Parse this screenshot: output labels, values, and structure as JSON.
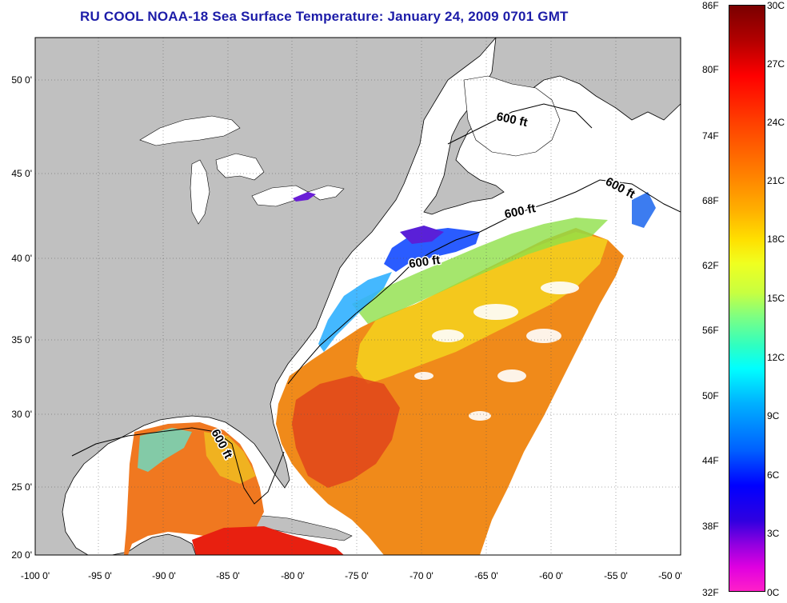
{
  "title": "RU COOL  NOAA-18  Sea Surface Temperature:  January 24, 2009 0701 GMT",
  "map": {
    "lon_ticks": [
      "-100 0'",
      "-95 0'",
      "-90 0'",
      "-85 0'",
      "-80 0'",
      "-75 0'",
      "-70 0'",
      "-65 0'",
      "-60 0'",
      "-55 0'",
      "-50 0'"
    ],
    "lat_ticks": [
      "50 0'",
      "45 0'",
      "40 0'",
      "35 0'",
      "30 0'",
      "25 0'",
      "20 0'"
    ],
    "contour_label": "600 ft",
    "land_color": "#c0c0c0",
    "cloud_color": "#ffffff"
  },
  "colorbar": {
    "fahrenheit": [
      "86F",
      "80F",
      "74F",
      "68F",
      "62F",
      "56F",
      "50F",
      "44F",
      "38F",
      "32F"
    ],
    "celsius": [
      "30C",
      "27C",
      "24C",
      "21C",
      "18C",
      "15C",
      "12C",
      "9C",
      "6C",
      "3C",
      "0C"
    ]
  }
}
